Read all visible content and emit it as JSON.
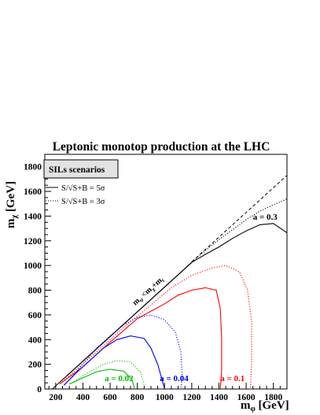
{
  "chart_data": {
    "type": "line",
    "title": "Leptonic monotop production at the LHC",
    "xlabel_main": "m",
    "xlabel_sub": "φ",
    "xlabel_unit": " [GeV]",
    "ylabel_main": "m",
    "ylabel_sub": "χ",
    "ylabel_unit": " [GeV]",
    "xlim": [
      120,
      1900
    ],
    "ylim": [
      0,
      1900
    ],
    "grid": false,
    "x_ticks": [
      200,
      400,
      600,
      800,
      1000,
      1200,
      1400,
      1600,
      1800
    ],
    "y_ticks": [
      0,
      200,
      400,
      600,
      800,
      1000,
      1200,
      1400,
      1600,
      1800
    ],
    "scenario_box": "SILs scenarios",
    "legend": {
      "placement": "top-left",
      "entries": [
        {
          "label": "S/√S+B = 5σ",
          "style": "solid"
        },
        {
          "label": "S/√S+B = 3σ",
          "style": "dotted"
        }
      ]
    },
    "kinematic_label": {
      "main": "m",
      "phi": "φ",
      "lt": " <m",
      "chi": "χ",
      "plus": "+m",
      "t": "t"
    },
    "colors": {
      "a_0_3": "#000000",
      "a_0_1": "#ff0000",
      "a_0_04": "#0000ee",
      "a_0_02": "#00bb00"
    },
    "kinematic_limit": {
      "x": [
        175,
        1200
      ],
      "y": [
        0,
        1025
      ]
    },
    "series": [
      {
        "label": "a = 0.3",
        "color": "#000000",
        "sigma5": {
          "x": [
            280,
            500,
            800,
            1100,
            1200,
            1300,
            1400,
            1500,
            1600,
            1700,
            1800,
            1900
          ],
          "y": [
            105,
            325,
            625,
            925,
            1025,
            1090,
            1150,
            1220,
            1280,
            1330,
            1340,
            1265
          ]
        },
        "sigma3": {
          "x": [
            1200,
            1300,
            1400,
            1500,
            1600,
            1700,
            1800,
            1900
          ],
          "y": [
            1030,
            1120,
            1210,
            1290,
            1370,
            1440,
            1490,
            1540
          ]
        },
        "dashed_extension": {
          "x": [
            1200,
            1900
          ],
          "y": [
            1030,
            1730
          ]
        }
      },
      {
        "label": "a = 0.1",
        "color": "#ff0000",
        "sigma5": {
          "x": [
            230,
            400,
            600,
            800,
            1000,
            1100,
            1200,
            1300,
            1380,
            1410,
            1420,
            1420,
            1410
          ],
          "y": [
            40,
            180,
            380,
            570,
            690,
            760,
            800,
            820,
            800,
            650,
            400,
            150,
            0
          ]
        },
        "sigma3": {
          "x": [
            250,
            500,
            700,
            900,
            1050,
            1200,
            1350,
            1450,
            1550,
            1610,
            1640,
            1640,
            1630
          ],
          "y": [
            60,
            300,
            500,
            680,
            820,
            920,
            980,
            1000,
            950,
            800,
            550,
            200,
            0
          ]
        }
      },
      {
        "label": "a = 0.04",
        "color": "#0000ee",
        "sigma5": {
          "x": [
            260,
            350,
            450,
            550,
            650,
            750,
            850,
            900,
            950,
            985,
            1000
          ],
          "y": [
            30,
            130,
            230,
            330,
            400,
            430,
            410,
            330,
            200,
            60,
            0
          ]
        },
        "sigma3": {
          "x": [
            270,
            400,
            500,
            600,
            700,
            800,
            900,
            1000,
            1080,
            1120,
            1130,
            1120
          ],
          "y": [
            40,
            200,
            330,
            430,
            520,
            580,
            600,
            560,
            460,
            300,
            100,
            0
          ]
        }
      },
      {
        "label": "a = 0.02",
        "color": "#00bb00",
        "sigma5": {
          "x": [
            300,
            400,
            500,
            600,
            700,
            760,
            780
          ],
          "y": [
            40,
            90,
            140,
            160,
            145,
            80,
            0
          ]
        },
        "sigma3": {
          "x": [
            320,
            450,
            550,
            650,
            750,
            820,
            860
          ],
          "y": [
            50,
            140,
            200,
            230,
            220,
            140,
            0
          ]
        }
      }
    ],
    "annotations": [
      {
        "text": "a = 0.3",
        "x": 1650,
        "y": 1370,
        "color": "#000000"
      },
      {
        "text": "a = 0.1",
        "x": 1410,
        "y": 65,
        "color": "#ff0000"
      },
      {
        "text": "a = 0.04",
        "x": 965,
        "y": 65,
        "color": "#0000ee"
      },
      {
        "text": "a = 0.02",
        "x": 560,
        "y": 65,
        "color": "#00bb00"
      }
    ]
  }
}
